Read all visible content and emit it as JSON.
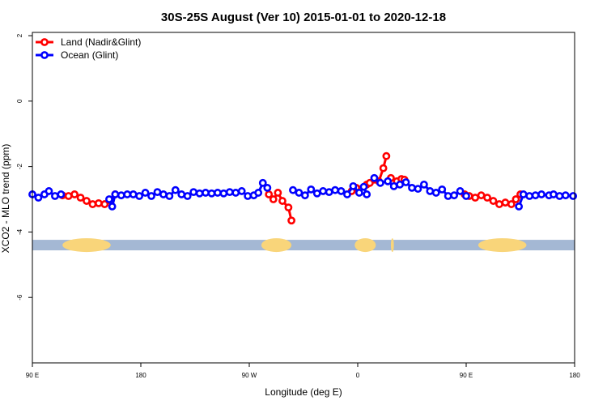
{
  "chart_data": {
    "type": "line",
    "title": "30S-25S August (Ver 10)   2015-01-01 to 2020-12-18",
    "xlabel": "Longitude (deg E)",
    "ylabel": "XCO2 - MLO trend (ppm)",
    "xlim": [
      90,
      450
    ],
    "ylim": [
      -8,
      2.1
    ],
    "x_ticks": [
      {
        "value": 90,
        "label": "90 E"
      },
      {
        "value": 162,
        "label": "180"
      },
      {
        "value": 234,
        "label": "90 W"
      },
      {
        "value": 306,
        "label": "0"
      },
      {
        "value": 378,
        "label": "90 E"
      },
      {
        "value": 450,
        "label": "180"
      }
    ],
    "y_ticks": [
      {
        "value": 2,
        "label": "2"
      },
      {
        "value": 0,
        "label": "0"
      },
      {
        "value": -2,
        "label": "-2"
      },
      {
        "value": -4,
        "label": "-4"
      },
      {
        "value": -6,
        "label": "-6"
      }
    ],
    "legend": {
      "position": "top-left"
    },
    "series": [
      {
        "name": "Land (Nadir&Glint)",
        "color": "#ff0000",
        "segments": [
          [
            [
              110,
              -2.88
            ],
            [
              114,
              -2.9
            ],
            [
              118,
              -2.85
            ],
            [
              122,
              -2.95
            ],
            [
              126,
              -3.05
            ],
            [
              130,
              -3.15
            ],
            [
              134,
              -3.12
            ],
            [
              138,
              -3.15
            ],
            [
              142,
              -3.05
            ],
            [
              145,
              -2.85
            ]
          ],
          [
            [
              247,
              -2.85
            ],
            [
              250,
              -3.0
            ],
            [
              253,
              -2.8
            ],
            [
              256,
              -3.05
            ],
            [
              260,
              -3.25
            ],
            [
              262,
              -3.65
            ]
          ],
          [
            [
              302,
              -2.75
            ],
            [
              305,
              -2.65
            ],
            [
              312,
              -2.55
            ],
            [
              314,
              -2.5
            ],
            [
              317,
              -2.4
            ],
            [
              320,
              -2.45
            ],
            [
              323,
              -2.05
            ],
            [
              325,
              -1.68
            ]
          ],
          [
            [
              328,
              -2.35
            ],
            [
              332,
              -2.45
            ],
            [
              335,
              -2.38
            ],
            [
              337,
              -2.4
            ]
          ],
          [
            [
              377,
              -2.85
            ],
            [
              380,
              -2.9
            ],
            [
              384,
              -2.95
            ],
            [
              388,
              -2.88
            ],
            [
              392,
              -2.95
            ],
            [
              396,
              -3.05
            ],
            [
              400,
              -3.15
            ],
            [
              404,
              -3.1
            ],
            [
              408,
              -3.15
            ],
            [
              411,
              -3.0
            ],
            [
              414,
              -2.85
            ]
          ]
        ]
      },
      {
        "name": "Ocean (Glint)",
        "color": "#0000ff",
        "segments": [
          [
            [
              90,
              -2.85
            ],
            [
              94,
              -2.95
            ],
            [
              98,
              -2.85
            ],
            [
              101,
              -2.75
            ],
            [
              105,
              -2.9
            ],
            [
              109,
              -2.85
            ]
          ],
          [
            [
              141,
              -3.0
            ],
            [
              143,
              -3.22
            ],
            [
              145,
              -2.85
            ],
            [
              149,
              -2.88
            ],
            [
              153,
              -2.85
            ],
            [
              157,
              -2.85
            ],
            [
              161,
              -2.9
            ],
            [
              165,
              -2.8
            ],
            [
              169,
              -2.9
            ],
            [
              173,
              -2.78
            ],
            [
              177,
              -2.85
            ],
            [
              181,
              -2.9
            ],
            [
              185,
              -2.72
            ],
            [
              189,
              -2.85
            ],
            [
              193,
              -2.9
            ],
            [
              197,
              -2.78
            ],
            [
              201,
              -2.82
            ],
            [
              205,
              -2.8
            ],
            [
              209,
              -2.82
            ],
            [
              213,
              -2.8
            ],
            [
              217,
              -2.82
            ],
            [
              221,
              -2.78
            ],
            [
              225,
              -2.8
            ],
            [
              229,
              -2.75
            ],
            [
              233,
              -2.9
            ],
            [
              237,
              -2.88
            ],
            [
              240,
              -2.8
            ],
            [
              243,
              -2.5
            ],
            [
              246,
              -2.65
            ]
          ],
          [
            [
              263,
              -2.72
            ],
            [
              267,
              -2.8
            ],
            [
              271,
              -2.88
            ],
            [
              275,
              -2.7
            ],
            [
              279,
              -2.82
            ],
            [
              283,
              -2.75
            ],
            [
              287,
              -2.78
            ],
            [
              291,
              -2.72
            ],
            [
              295,
              -2.75
            ],
            [
              299,
              -2.85
            ],
            [
              303,
              -2.6
            ],
            [
              307,
              -2.8
            ],
            [
              310,
              -2.62
            ],
            [
              312,
              -2.85
            ]
          ],
          [
            [
              317,
              -2.35
            ],
            [
              321,
              -2.5
            ],
            [
              326,
              -2.45
            ],
            [
              330,
              -2.6
            ],
            [
              334,
              -2.55
            ],
            [
              338,
              -2.48
            ],
            [
              342,
              -2.65
            ],
            [
              346,
              -2.68
            ],
            [
              350,
              -2.55
            ],
            [
              354,
              -2.75
            ],
            [
              358,
              -2.8
            ],
            [
              362,
              -2.7
            ],
            [
              366,
              -2.9
            ],
            [
              370,
              -2.88
            ],
            [
              374,
              -2.75
            ],
            [
              378,
              -2.9
            ]
          ],
          [
            [
              413,
              -3.22
            ],
            [
              416,
              -2.85
            ],
            [
              420,
              -2.9
            ],
            [
              424,
              -2.88
            ],
            [
              428,
              -2.85
            ],
            [
              433,
              -2.88
            ],
            [
              436,
              -2.85
            ],
            [
              440,
              -2.9
            ],
            [
              444,
              -2.88
            ],
            [
              449,
              -2.9
            ]
          ]
        ]
      }
    ],
    "land_ocean_band": {
      "y": -4.4,
      "band_color": "#a4b8d4",
      "land_color": "#f9d57a",
      "land_ranges": [
        [
          110,
          142
        ],
        [
          242,
          262
        ],
        [
          304,
          318
        ],
        [
          328,
          330
        ],
        [
          386,
          418
        ]
      ]
    }
  }
}
